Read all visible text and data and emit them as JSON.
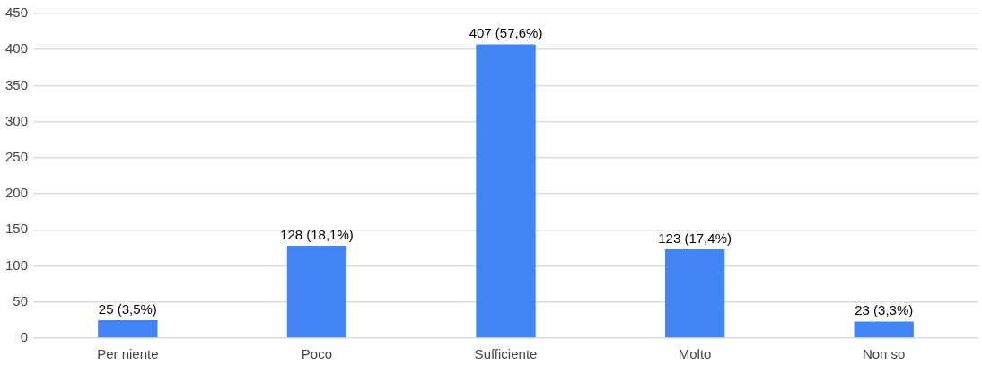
{
  "chart_data": {
    "type": "bar",
    "categories": [
      "Per niente",
      "Poco",
      "Sufficiente",
      "Molto",
      "Non so"
    ],
    "values": [
      25,
      128,
      407,
      123,
      23
    ],
    "color": "#4285f4",
    "value_labels": [
      "25 (3,5%)",
      "128 (18,1%)",
      "407 (57,6%)",
      "123 (17,4%)",
      "23 (3,3%)"
    ],
    "ylim": [
      0,
      450
    ],
    "yticks": [
      0,
      50,
      100,
      150,
      200,
      250,
      300,
      350,
      400,
      450
    ],
    "grid": true,
    "legend": false
  }
}
